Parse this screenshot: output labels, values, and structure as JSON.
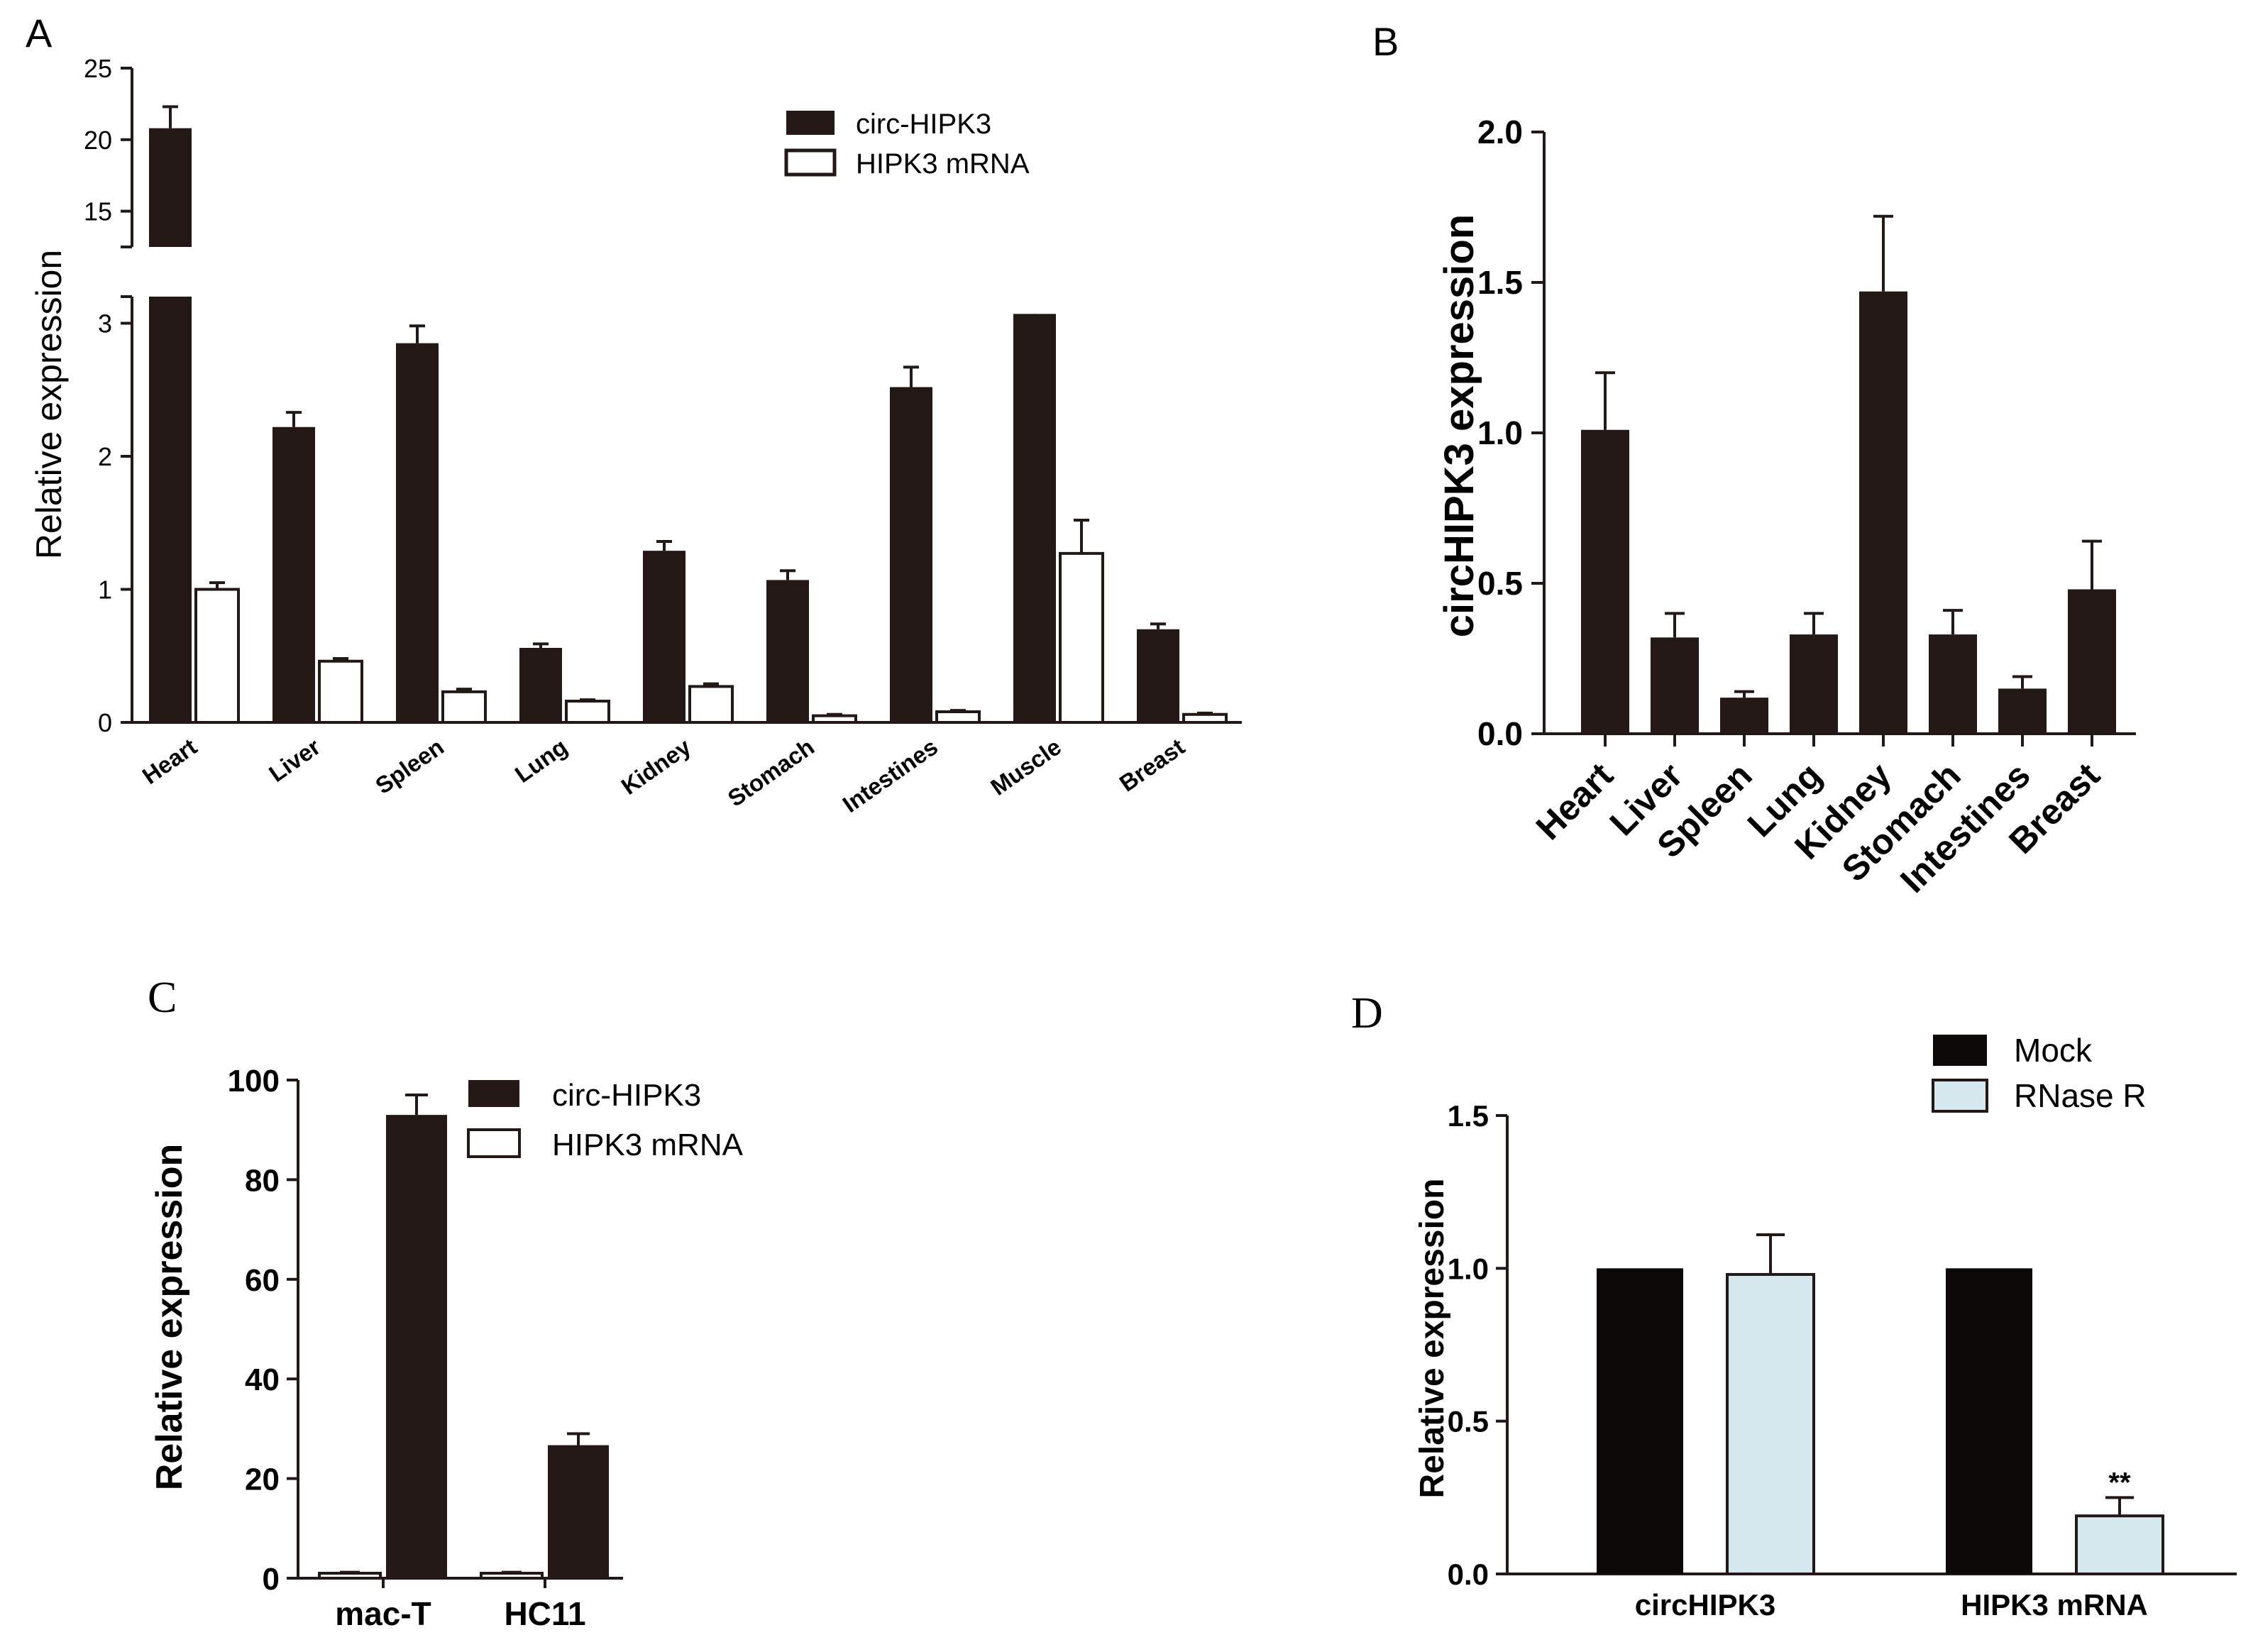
{
  "colors": {
    "dark_bar": "#231816",
    "mock_bar": "#0d0808",
    "rnase_bar": "#d5e8ed",
    "open_bar": "#ffffff",
    "axis": "#231816",
    "background": "#ffffff"
  },
  "chart_data": [
    {
      "panel_label": "A",
      "type": "bar",
      "title": "",
      "ylabel": "Relative  expression",
      "xlabel": "",
      "categories": [
        "Heart",
        "Liver",
        "Spleen",
        "Lung",
        "Kidney",
        "Stomach",
        "Intestines",
        "Muscle",
        "Breast"
      ],
      "series": [
        {
          "name": "circ-HIPK3",
          "values": [
            20.8,
            2.22,
            2.85,
            0.56,
            1.29,
            1.07,
            2.52,
            3.07,
            0.7
          ],
          "errors": [
            1.5,
            0.11,
            0.13,
            0.03,
            0.07,
            0.07,
            0.15,
            0.15,
            0.04
          ]
        },
        {
          "name": "HIPK3 mRNA",
          "values": [
            1.0,
            0.46,
            0.23,
            0.16,
            0.27,
            0.05,
            0.08,
            1.27,
            0.06
          ],
          "errors": [
            0.05,
            0.02,
            0.02,
            0.01,
            0.02,
            0.01,
            0.01,
            0.25,
            0.01
          ]
        }
      ],
      "y_axis_broken": true,
      "ylim_lower": [
        0,
        3.2
      ],
      "ylim_upper": [
        12.5,
        25
      ],
      "yticks_lower": [
        "0",
        "1",
        "2",
        "3"
      ],
      "yticks_upper": [
        "15",
        "20",
        "25"
      ],
      "legend_position": "top-right",
      "grid": false
    },
    {
      "panel_label": "B",
      "type": "bar",
      "title": "",
      "ylabel": "circHIPK3    expression",
      "xlabel": "",
      "categories": [
        "Heart",
        "Liver",
        "Spleen",
        "Lung",
        "Kidney",
        "Stomach",
        "Intestines",
        "Breast"
      ],
      "series": [
        {
          "name": "circHIPK3",
          "values": [
            1.01,
            0.32,
            0.12,
            0.33,
            1.47,
            0.33,
            0.15,
            0.48
          ],
          "errors": [
            0.19,
            0.08,
            0.02,
            0.07,
            0.25,
            0.08,
            0.04,
            0.16
          ]
        }
      ],
      "ylim": [
        0,
        2.0
      ],
      "yticks": [
        "0.0",
        "0.5",
        "1.0",
        "1.5",
        "2.0"
      ],
      "grid": false
    },
    {
      "panel_label": "C",
      "type": "bar",
      "title": "",
      "ylabel": "Relative  expression",
      "xlabel": "",
      "categories": [
        "mac-T",
        "HC11"
      ],
      "series": [
        {
          "name": "HIPK3 mRNA",
          "values": [
            1.0,
            1.0
          ],
          "errors": [
            0.2,
            0.2
          ]
        },
        {
          "name": "circ-HIPK3",
          "values": [
            93,
            26.7
          ],
          "errors": [
            4,
            2.3
          ]
        }
      ],
      "ylim": [
        0,
        100
      ],
      "yticks": [
        "0",
        "20",
        "40",
        "60",
        "80",
        "100"
      ],
      "legend": [
        "circ-HIPK3",
        "HIPK3 mRNA"
      ],
      "legend_position": "top-right",
      "grid": false
    },
    {
      "panel_label": "D",
      "type": "bar",
      "title": "",
      "ylabel": "Relative  expression",
      "xlabel": "",
      "categories": [
        "circHIPK3",
        "HIPK3 mRNA"
      ],
      "series": [
        {
          "name": "Mock",
          "values": [
            1.0,
            1.0
          ],
          "errors": [
            0,
            0
          ]
        },
        {
          "name": "RNase R",
          "values": [
            0.98,
            0.19
          ],
          "errors": [
            0.13,
            0.06
          ]
        }
      ],
      "ylim": [
        0,
        1.5
      ],
      "yticks": [
        "0.0",
        "0.5",
        "1.0",
        "1.5"
      ],
      "annotations": [
        {
          "series": "RNase R",
          "category": "HIPK3 mRNA",
          "text": "**"
        }
      ],
      "legend_position": "top",
      "grid": false
    }
  ]
}
